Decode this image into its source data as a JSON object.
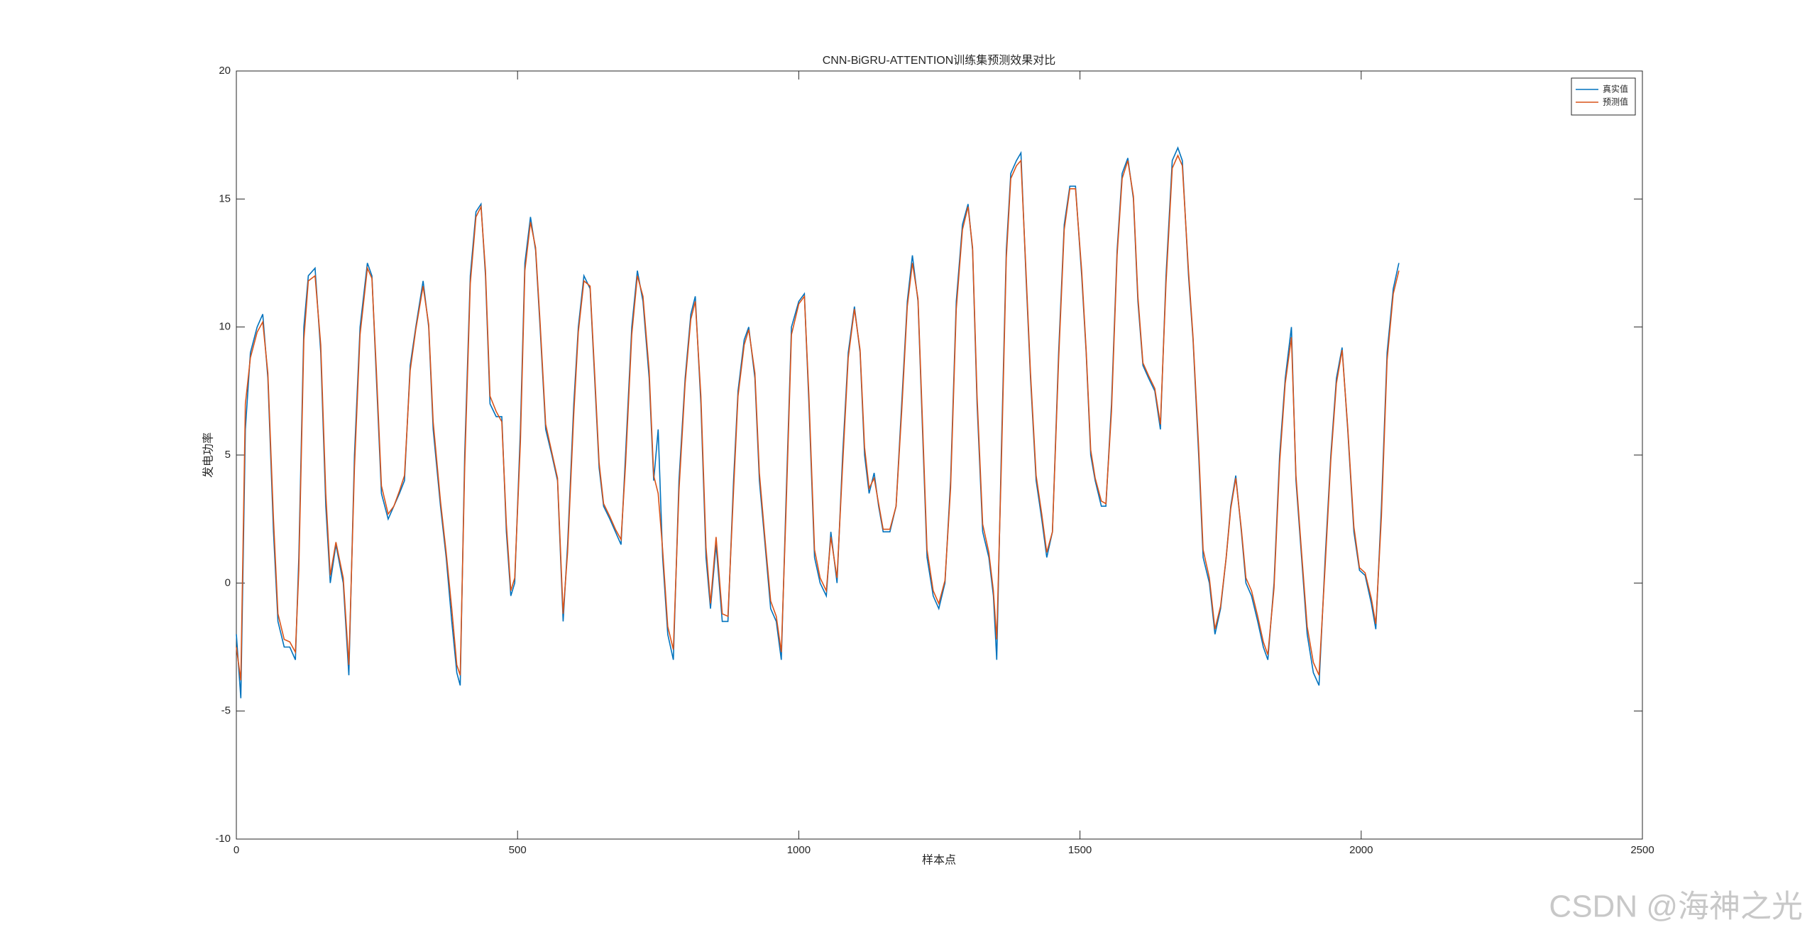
{
  "chart_data": {
    "type": "line",
    "title": "CNN-BiGRU-ATTENTION训练集预测效果对比",
    "xlabel": "样本点",
    "ylabel": "发电功率",
    "watermark": "CSDN @海神之光",
    "legend": "top-right",
    "xlim": [
      0,
      2500
    ],
    "xticks": [
      0,
      500,
      1000,
      1500,
      2000,
      2500
    ],
    "ylim": [
      -10,
      20
    ],
    "yticks": [
      -10,
      -5,
      0,
      5,
      10,
      15,
      20
    ],
    "x": [
      0,
      8,
      16,
      25,
      37,
      47,
      56,
      66,
      74,
      85,
      95,
      105,
      111,
      120,
      128,
      140,
      150,
      159,
      167,
      177,
      190,
      200,
      210,
      220,
      233,
      241,
      249,
      258,
      270,
      280,
      290,
      299,
      309,
      319,
      332,
      342,
      350,
      363,
      373,
      383,
      392,
      398,
      406,
      416,
      426,
      435,
      443,
      451,
      462,
      472,
      480,
      488,
      495,
      505,
      513,
      523,
      532,
      540,
      550,
      561,
      571,
      581,
      589,
      600,
      608,
      618,
      629,
      637,
      645,
      653,
      664,
      674,
      684,
      692,
      703,
      713,
      723,
      734,
      742,
      750,
      758,
      767,
      777,
      787,
      798,
      808,
      816,
      826,
      835,
      843,
      853,
      864,
      874,
      884,
      892,
      903,
      911,
      922,
      930,
      940,
      950,
      960,
      969,
      977,
      987,
      1000,
      1010,
      1018,
      1028,
      1038,
      1049,
      1057,
      1068,
      1078,
      1088,
      1099,
      1109,
      1117,
      1125,
      1134,
      1142,
      1150,
      1162,
      1173,
      1183,
      1193,
      1202,
      1212,
      1220,
      1228,
      1239,
      1249,
      1260,
      1270,
      1280,
      1291,
      1301,
      1309,
      1317,
      1327,
      1338,
      1346,
      1352,
      1360,
      1369,
      1377,
      1387,
      1395,
      1404,
      1412,
      1422,
      1432,
      1441,
      1451,
      1462,
      1472,
      1482,
      1492,
      1503,
      1511,
      1519,
      1527,
      1538,
      1546,
      1556,
      1566,
      1575,
      1585,
      1595,
      1603,
      1612,
      1622,
      1633,
      1643,
      1653,
      1664,
      1674,
      1682,
      1693,
      1701,
      1711,
      1719,
      1730,
      1740,
      1750,
      1760,
      1768,
      1777,
      1787,
      1795,
      1805,
      1816,
      1826,
      1834,
      1845,
      1855,
      1865,
      1876,
      1884,
      1894,
      1904,
      1915,
      1925,
      1936,
      1946,
      1956,
      1966,
      1976,
      1987,
      1997,
      2007,
      2018,
      2026,
      2036,
      2046,
      2057,
      2067
    ],
    "series": [
      {
        "name": "真实值",
        "color": "#0072BD",
        "values": [
          -2,
          -4.5,
          6,
          9,
          10,
          10.5,
          8,
          2,
          -1.5,
          -2.5,
          -2.5,
          -3,
          1,
          10,
          12,
          12.3,
          9,
          3,
          0,
          1.5,
          0,
          -3.6,
          5,
          10,
          12.5,
          12,
          8,
          3.5,
          2.5,
          3,
          3.5,
          4,
          8.5,
          10,
          11.8,
          10,
          6,
          3,
          1,
          -1.5,
          -3.5,
          -4,
          5,
          12,
          14.5,
          14.8,
          12,
          7,
          6.5,
          6.5,
          2,
          -0.5,
          0,
          6,
          12.5,
          14.3,
          13,
          10,
          6,
          5,
          4,
          -1.5,
          1.5,
          7,
          10,
          12,
          11.5,
          8,
          4.5,
          3,
          2.5,
          2,
          1.5,
          5,
          10,
          12.2,
          11,
          8,
          4,
          6,
          1,
          -2,
          -3,
          4,
          8,
          10.5,
          11.2,
          7,
          1,
          -1,
          1.5,
          -1.5,
          -1.5,
          4,
          7.5,
          9.5,
          10,
          8,
          4,
          1.5,
          -1,
          -1.5,
          -3,
          3,
          10,
          11,
          11.3,
          7,
          1,
          0,
          -0.5,
          2,
          0,
          5,
          9,
          10.8,
          9,
          5,
          3.5,
          4.3,
          3,
          2,
          2,
          3,
          7,
          11,
          12.8,
          11,
          6,
          1,
          -0.5,
          -1,
          0,
          4,
          11,
          14,
          14.8,
          13,
          7,
          2,
          1,
          -0.5,
          -3,
          5,
          13,
          16,
          16.5,
          16.8,
          12,
          8,
          4,
          2.5,
          1,
          2,
          9,
          14,
          15.5,
          15.5,
          12,
          9,
          5,
          4,
          3,
          3,
          7,
          13,
          16,
          16.6,
          15,
          11,
          8.5,
          8,
          7.5,
          6,
          12,
          16.5,
          17,
          16.5,
          12,
          9.5,
          5,
          1,
          0,
          -2,
          -1,
          1,
          3,
          4.2,
          2,
          0,
          -0.5,
          -1.5,
          -2.5,
          -3,
          0,
          5,
          8,
          10,
          4,
          1,
          -2,
          -3.5,
          -4,
          1,
          5,
          8,
          9.2,
          6,
          2,
          0.5,
          0.3,
          -0.8,
          -1.8,
          3,
          9,
          11.5,
          12.5
        ]
      },
      {
        "name": "预测值",
        "color": "#D95319",
        "values": [
          -2.5,
          -3.8,
          7,
          8.8,
          9.8,
          10.2,
          8.2,
          2.5,
          -1.2,
          -2.2,
          -2.3,
          -2.7,
          0.5,
          9.5,
          11.8,
          12,
          9.3,
          3.5,
          0.3,
          1.6,
          0.2,
          -3.2,
          4.5,
          9.7,
          12.3,
          11.9,
          8.3,
          3.8,
          2.7,
          3,
          3.6,
          4.2,
          8.3,
          9.9,
          11.6,
          10.1,
          6.3,
          3.2,
          1.2,
          -1,
          -3.2,
          -3.6,
          4.5,
          11.7,
          14.3,
          14.7,
          12.2,
          7.3,
          6.7,
          6.3,
          2.3,
          -0.3,
          0.2,
          5.5,
          12.2,
          14.1,
          13.1,
          10.2,
          6.2,
          5.1,
          4.1,
          -1.2,
          1.2,
          6.6,
          9.8,
          11.8,
          11.6,
          8.2,
          4.7,
          3.1,
          2.6,
          2.1,
          1.7,
          4.6,
          9.7,
          12,
          11.2,
          8.3,
          4.2,
          3.5,
          1.3,
          -1.7,
          -2.6,
          3.6,
          7.8,
          10.3,
          11,
          7.3,
          1.4,
          -0.8,
          1.8,
          -1.2,
          -1.3,
          3.6,
          7.3,
          9.3,
          9.9,
          8.2,
          4.3,
          1.7,
          -0.7,
          -1.3,
          -2.7,
          2.6,
          9.7,
          10.9,
          11.2,
          7.3,
          1.3,
          0.2,
          -0.3,
          1.8,
          0.2,
          4.6,
          8.8,
          10.7,
          9.1,
          5.3,
          3.7,
          4.1,
          3.1,
          2.1,
          2.1,
          3,
          6.7,
          10.8,
          12.5,
          11.1,
          6.3,
          1.3,
          -0.3,
          -0.8,
          0.1,
          3.7,
          10.7,
          13.8,
          14.7,
          13.1,
          7.3,
          2.3,
          1.2,
          -0.3,
          -2.2,
          4.5,
          12.7,
          15.8,
          16.3,
          16.5,
          12.2,
          8.2,
          4.2,
          2.7,
          1.2,
          2,
          8.7,
          13.8,
          15.4,
          15.4,
          12.2,
          9.1,
          5.2,
          4.1,
          3.2,
          3.1,
          6.7,
          12.8,
          15.8,
          16.5,
          15.1,
          11.2,
          8.6,
          8.1,
          7.6,
          6.2,
          11.7,
          16.2,
          16.7,
          16.3,
          12.2,
          9.6,
          5.3,
          1.3,
          0.2,
          -1.8,
          -0.9,
          1,
          2.9,
          4.1,
          2.1,
          0.2,
          -0.3,
          -1.3,
          -2.3,
          -2.8,
          -0.2,
          4.7,
          7.8,
          9.6,
          4.2,
          1.2,
          -1.7,
          -3.1,
          -3.6,
          0.7,
          4.8,
          7.8,
          9.1,
          6.1,
          2.2,
          0.6,
          0.4,
          -0.6,
          -1.6,
          2.6,
          8.7,
          11.3,
          12.2
        ]
      }
    ]
  }
}
